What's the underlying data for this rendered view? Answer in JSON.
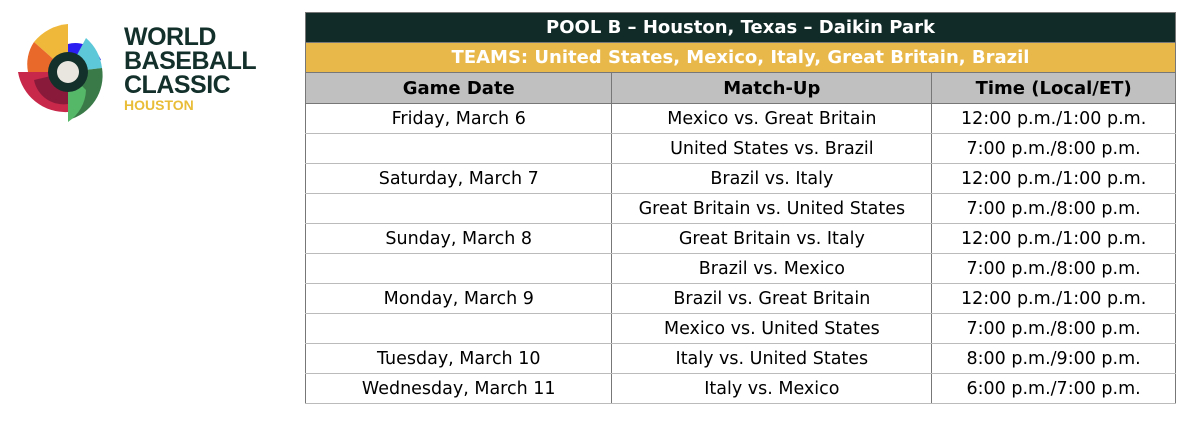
{
  "logo": {
    "line1": "WORLD",
    "line2": "BASEBALL",
    "line3": "CLASSIC",
    "city": "HOUSTON"
  },
  "title": "POOL B – Houston, Texas – Daikin Park",
  "teams": "TEAMS: United States, Mexico, Italy, Great Britain, Brazil",
  "colors": {
    "header": "#112b29",
    "teams_bar": "#e9b84a",
    "col_header": "#c0c0c0"
  },
  "columns": [
    "Game Date",
    "Match-Up",
    "Time (Local/ET)"
  ],
  "rows": [
    [
      "Friday, March 6",
      "Mexico vs. Great Britain",
      "12:00 p.m./1:00 p.m."
    ],
    [
      "",
      "United States vs. Brazil",
      "7:00 p.m./8:00 p.m."
    ],
    [
      "Saturday, March 7",
      "Brazil vs. Italy",
      "12:00 p.m./1:00 p.m."
    ],
    [
      "",
      "Great Britain vs. United States",
      "7:00 p.m./8:00 p.m."
    ],
    [
      "Sunday, March 8",
      "Great Britain vs. Italy",
      "12:00 p.m./1:00 p.m."
    ],
    [
      "",
      "Brazil vs. Mexico",
      "7:00 p.m./8:00 p.m."
    ],
    [
      "Monday, March 9",
      "Brazil vs. Great Britain",
      "12:00 p.m./1:00 p.m."
    ],
    [
      "",
      "Mexico vs. United States",
      "7:00 p.m./8:00 p.m."
    ],
    [
      "Tuesday, March 10",
      "Italy vs. United States",
      "8:00 p.m./9:00 p.m."
    ],
    [
      "Wednesday, March 11",
      "Italy vs. Mexico",
      "6:00 p.m./7:00 p.m."
    ]
  ]
}
